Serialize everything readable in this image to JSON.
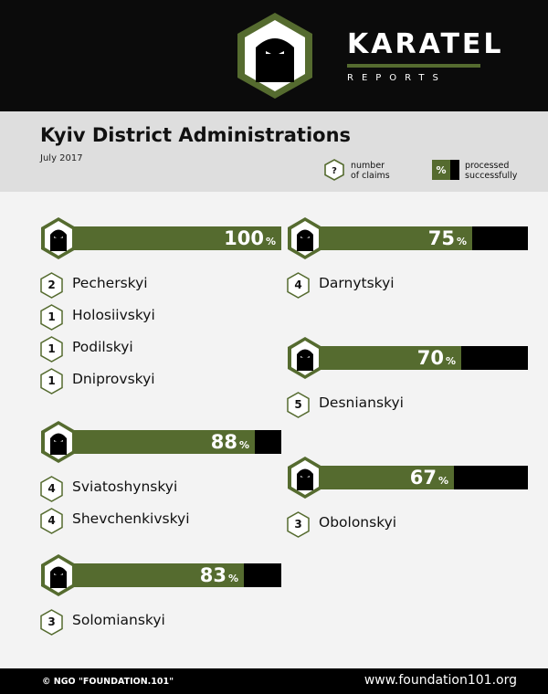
{
  "brand": {
    "name": "KARATEL",
    "sub": "REPORTS"
  },
  "header": {
    "title": "Kyiv District Administrations",
    "date": "July 2017"
  },
  "legend": {
    "claims_symbol": "?",
    "claims_text": [
      "number",
      "of claims"
    ],
    "pct_symbol": "%",
    "pct_text": [
      "processed",
      "successfully"
    ]
  },
  "colors": {
    "bar_fill": "#556b2f",
    "bar_remainder": "#000000",
    "background": "#f3f3f3"
  },
  "chart_data": {
    "type": "bar",
    "title": "Kyiv District Administrations",
    "subtitle": "July 2017",
    "categories": [
      "100",
      "88",
      "83",
      "75",
      "70",
      "67"
    ],
    "groups": [
      {
        "value": 100,
        "label": "100",
        "unit": "%",
        "districts": [
          {
            "claims": "2",
            "name": "Pecherskyi"
          },
          {
            "claims": "1",
            "name": "Holosiivskyi"
          },
          {
            "claims": "1",
            "name": "Podilskyi"
          },
          {
            "claims": "1",
            "name": "Dniprovskyi"
          }
        ]
      },
      {
        "value": 88,
        "label": "88",
        "unit": "%",
        "districts": [
          {
            "claims": "4",
            "name": "Sviatoshynskyi"
          },
          {
            "claims": "4",
            "name": "Shevchenkivskyi"
          }
        ]
      },
      {
        "value": 83,
        "label": "83",
        "unit": "%",
        "districts": [
          {
            "claims": "3",
            "name": "Solomianskyi"
          }
        ]
      },
      {
        "value": 75,
        "label": "75",
        "unit": "%",
        "districts": [
          {
            "claims": "4",
            "name": "Darnytskyi"
          }
        ]
      },
      {
        "value": 70,
        "label": "70",
        "unit": "%",
        "districts": [
          {
            "claims": "5",
            "name": "Desnianskyi"
          }
        ]
      },
      {
        "value": 67,
        "label": "67",
        "unit": "%",
        "districts": [
          {
            "claims": "3",
            "name": "Obolonskyi"
          }
        ]
      }
    ],
    "ylim": [
      0,
      100
    ]
  },
  "footer": {
    "copyright": "© NGO \"FOUNDATION.101\"",
    "website": "www.foundation101.org"
  }
}
